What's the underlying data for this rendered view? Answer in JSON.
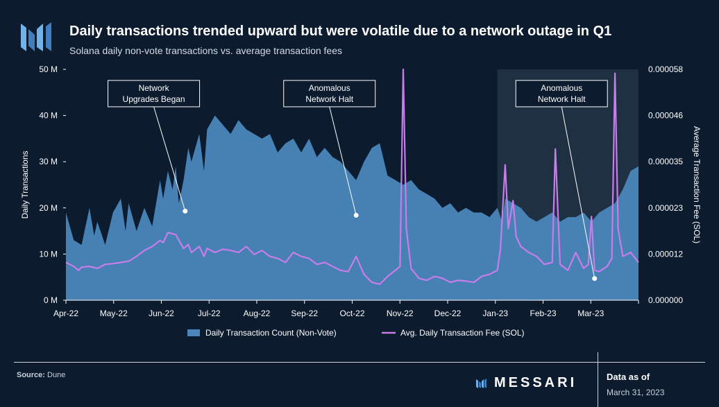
{
  "header": {
    "title": "Daily transactions trended upward but were volatile due to a network outage in Q1",
    "subtitle": "Solana daily non-vote transactions vs. average transaction fees"
  },
  "footer": {
    "source_label": "Source:",
    "source_value": "Dune",
    "brand": "MESSARI",
    "as_of_label": "Data as of",
    "as_of_date": "March 31, 2023"
  },
  "colors": {
    "background": "#0c1b2e",
    "area": "#4b86bb",
    "fee_line": "#c77dea",
    "highlight": "#243447"
  },
  "chart_data": {
    "type": "area+line",
    "title": "Daily transactions trended upward but were volatile due to a network outage in Q1",
    "subtitle": "Solana daily non-vote transactions vs. average transaction fees",
    "ylabel_left": "Daily Transactions",
    "ylabel_right": "Average Transaction Fee (SOL)",
    "ylim_left": [
      0,
      50000000
    ],
    "ylim_right": [
      0,
      5.8e-05
    ],
    "x_range": [
      "2022-04-01",
      "2023-03-31"
    ],
    "x_ticks": [
      "Apr-22",
      "May-22",
      "Jun-22",
      "Jul-22",
      "Aug-22",
      "Sep-22",
      "Oct-22",
      "Nov-22",
      "Dec-22",
      "Jan-23",
      "Feb-23",
      "Mar-23"
    ],
    "y_ticks_left": [
      "0 M",
      "10 M",
      "20 M",
      "30 M",
      "40 M",
      "50 M"
    ],
    "y_ticks_right": [
      "0.000000",
      "0.000012",
      "0.000023",
      "0.000035",
      "0.000046",
      "0.000058"
    ],
    "highlight_range_days": [
      275,
      365
    ],
    "annotations": [
      {
        "text": "Network Upgrades Began",
        "lines": [
          "Network",
          "Upgrades Began"
        ],
        "target_day": 76,
        "target_value": 19300000,
        "box_center_day": 56
      },
      {
        "text": "Anomalous Network Halt",
        "lines": [
          "Anomalous",
          "Network Halt"
        ],
        "target_day": 185,
        "target_value": 18400000,
        "box_center_day": 168
      },
      {
        "text": "Anomalous Network Halt",
        "lines": [
          "Anomalous",
          "Network Halt"
        ],
        "target_day": 337,
        "target_value": 4700000,
        "box_center_day": 316
      }
    ],
    "series": [
      {
        "name": "Daily Transaction Count (Non-Vote)",
        "kind": "area",
        "unit": "transactions",
        "days": [
          0,
          5,
          10,
          15,
          18,
          20,
          25,
          30,
          35,
          38,
          40,
          45,
          50,
          55,
          60,
          62,
          65,
          68,
          70,
          72,
          75,
          78,
          80,
          85,
          88,
          90,
          95,
          100,
          105,
          110,
          115,
          120,
          125,
          130,
          135,
          140,
          145,
          150,
          155,
          160,
          165,
          170,
          175,
          180,
          185,
          190,
          195,
          200,
          205,
          210,
          215,
          220,
          225,
          230,
          235,
          240,
          245,
          250,
          255,
          260,
          265,
          270,
          275,
          278,
          280,
          285,
          290,
          295,
          300,
          305,
          310,
          315,
          320,
          325,
          330,
          335,
          340,
          345,
          350,
          355,
          360,
          365
        ],
        "values": [
          19000000,
          13000000,
          12000000,
          20000000,
          14000000,
          17000000,
          12000000,
          19000000,
          22000000,
          15000000,
          21000000,
          15000000,
          20000000,
          16000000,
          26000000,
          22000000,
          28000000,
          24000000,
          29000000,
          21000000,
          26000000,
          33000000,
          30000000,
          36000000,
          28000000,
          37000000,
          40000000,
          38000000,
          36000000,
          39000000,
          37000000,
          36000000,
          35000000,
          36000000,
          32000000,
          34000000,
          35000000,
          32000000,
          35000000,
          31000000,
          33000000,
          31000000,
          30000000,
          28000000,
          26000000,
          30000000,
          33000000,
          34000000,
          27000000,
          26000000,
          25000000,
          26000000,
          24000000,
          23000000,
          22000000,
          20000000,
          21000000,
          19000000,
          20000000,
          19000000,
          19000000,
          18000000,
          20000000,
          17000000,
          22000000,
          21000000,
          20000000,
          18000000,
          17000000,
          18000000,
          19000000,
          17000000,
          18000000,
          18000000,
          19000000,
          17000000,
          19000000,
          20000000,
          21000000,
          24000000,
          28000000,
          29000000
        ]
      },
      {
        "name": "Avg. Daily Transaction Fee (SOL)",
        "kind": "line",
        "unit": "SOL",
        "days": [
          0,
          5,
          8,
          10,
          15,
          20,
          25,
          30,
          35,
          40,
          45,
          50,
          55,
          60,
          62,
          65,
          70,
          75,
          78,
          80,
          85,
          88,
          90,
          95,
          100,
          105,
          110,
          115,
          120,
          125,
          130,
          135,
          140,
          145,
          150,
          155,
          160,
          165,
          170,
          175,
          180,
          185,
          190,
          195,
          200,
          205,
          210,
          213,
          215,
          217,
          220,
          225,
          230,
          235,
          240,
          245,
          250,
          255,
          260,
          265,
          270,
          275,
          277,
          280,
          282,
          285,
          287,
          290,
          295,
          300,
          305,
          310,
          312,
          315,
          320,
          325,
          330,
          333,
          335,
          337,
          340,
          345,
          348,
          350,
          352,
          355,
          360,
          365
        ],
        "values": [
          9.5e-06,
          8.5e-06,
          7.5e-06,
          8.3e-06,
          8.5e-06,
          8e-06,
          9e-06,
          9.2e-06,
          9.5e-06,
          9.8e-06,
          1.1e-05,
          1.25e-05,
          1.35e-05,
          1.5e-05,
          1.45e-05,
          1.7e-05,
          1.65e-05,
          1.3e-05,
          1.4e-05,
          1.2e-05,
          1.35e-05,
          1.1e-05,
          1.3e-05,
          1.2e-05,
          1.28e-05,
          1.25e-05,
          1.2e-05,
          1.35e-05,
          1.15e-05,
          1.25e-05,
          1.1e-05,
          1.05e-05,
          9.5e-06,
          1.2e-05,
          1.1e-05,
          1.05e-05,
          9e-06,
          9.5e-06,
          8.5e-06,
          7.5e-06,
          7.2e-06,
          1.1e-05,
          6.5e-06,
          4.5e-06,
          4e-06,
          6e-06,
          7.5e-06,
          8.5e-06,
          5.8e-05,
          1.8e-05,
          8e-06,
          5.5e-06,
          5e-06,
          6e-06,
          5.5e-06,
          4.5e-06,
          5e-06,
          4.8e-06,
          4.5e-06,
          6e-06,
          6.5e-06,
          7.5e-06,
          1.3e-05,
          3.4e-05,
          1.8e-05,
          2.5e-05,
          1.6e-05,
          1.35e-05,
          1.2e-05,
          1.1e-05,
          9e-06,
          9.5e-06,
          3.8e-05,
          9e-06,
          7.5e-06,
          1.2e-05,
          8e-06,
          9e-06,
          2.1e-05,
          7.5e-06,
          7.2e-06,
          8.5e-06,
          1.05e-05,
          5.7e-05,
          1.8e-05,
          1.1e-05,
          1.2e-05,
          9.5e-06
        ]
      }
    ],
    "legend": [
      {
        "label": "Daily Transaction Count (Non-Vote)",
        "symbol": "rect",
        "series": 0
      },
      {
        "label": "Avg. Daily Transaction Fee (SOL)",
        "symbol": "line",
        "series": 1
      }
    ]
  }
}
